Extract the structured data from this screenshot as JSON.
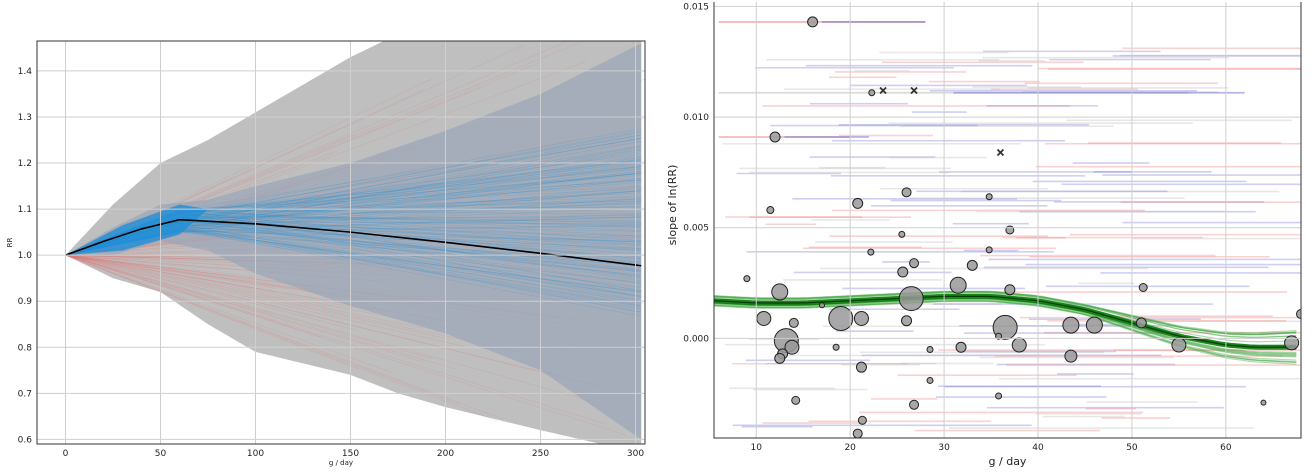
{
  "chart_data": [
    {
      "type": "line",
      "xlabel": "g / day",
      "ylabel": "RR",
      "xlim": [
        -15,
        305
      ],
      "ylim": [
        0.59,
        1.465
      ],
      "x_ticks": [
        0,
        50,
        100,
        150,
        200,
        250,
        300
      ],
      "y_ticks": [
        0.6,
        0.7,
        0.8,
        0.9,
        1.0,
        1.1,
        1.2,
        1.3,
        1.4
      ],
      "grid": true,
      "central_line": {
        "x": [
          0,
          20,
          40,
          60,
          100,
          150,
          200,
          250,
          303
        ],
        "y": [
          1.0,
          1.03,
          1.057,
          1.077,
          1.068,
          1.05,
          1.028,
          1.004,
          0.977
        ]
      },
      "band_outer": {
        "x": [
          0,
          25,
          50,
          75,
          100,
          150,
          175,
          200,
          250,
          303
        ],
        "upper": [
          1.0,
          1.11,
          1.2,
          1.25,
          1.31,
          1.43,
          1.48,
          1.5,
          1.5,
          1.5
        ],
        "lower": [
          1.0,
          0.95,
          0.92,
          0.85,
          0.79,
          0.74,
          0.7,
          0.67,
          0.62,
          0.57
        ]
      },
      "band_inner": {
        "x": [
          0,
          25,
          50,
          75,
          100,
          150,
          200,
          250,
          303
        ],
        "upper": [
          1.0,
          1.06,
          1.11,
          1.12,
          1.15,
          1.2,
          1.27,
          1.35,
          1.46
        ],
        "lower": [
          1.0,
          1.0,
          1.03,
          1.01,
          0.96,
          0.89,
          0.83,
          0.75,
          0.6
        ]
      },
      "colors": {
        "outer": "#b8b8b8",
        "inner": "#9aa5b8",
        "blue": "#1f8fd8",
        "red": "#e07070",
        "line": "#000000"
      }
    },
    {
      "type": "scatter",
      "xlabel": "g / day",
      "ylabel": "slope of ln(RR)",
      "xlim": [
        5.5,
        68
      ],
      "ylim": [
        -0.0045,
        0.0152
      ],
      "x_ticks": [
        10,
        20,
        30,
        40,
        50,
        60
      ],
      "y_ticks": [
        0.0,
        0.005,
        0.01,
        0.015
      ],
      "y_tick_labels": [
        "0.000",
        "0.005",
        "0.010",
        "0.015"
      ],
      "grid": true,
      "circles": [
        {
          "x": 16.0,
          "y": 0.0143,
          "s": 5
        },
        {
          "x": 12.0,
          "y": 0.0091,
          "s": 5
        },
        {
          "x": 22.3,
          "y": 0.0111,
          "s": 3
        },
        {
          "x": 20.8,
          "y": 0.0061,
          "s": 5
        },
        {
          "x": 11.5,
          "y": 0.0058,
          "s": 3.5
        },
        {
          "x": 26.0,
          "y": 0.0066,
          "s": 4.5
        },
        {
          "x": 34.8,
          "y": 0.0064,
          "s": 3
        },
        {
          "x": 25.5,
          "y": 0.0047,
          "s": 3
        },
        {
          "x": 37.0,
          "y": 0.0049,
          "s": 4
        },
        {
          "x": 22.2,
          "y": 0.0039,
          "s": 3
        },
        {
          "x": 34.8,
          "y": 0.004,
          "s": 3
        },
        {
          "x": 26.8,
          "y": 0.0034,
          "s": 4.5
        },
        {
          "x": 33.0,
          "y": 0.0033,
          "s": 5
        },
        {
          "x": 9.0,
          "y": 0.0027,
          "s": 3
        },
        {
          "x": 25.6,
          "y": 0.003,
          "s": 5
        },
        {
          "x": 12.5,
          "y": 0.0021,
          "s": 8
        },
        {
          "x": 31.5,
          "y": 0.0024,
          "s": 8
        },
        {
          "x": 37.0,
          "y": 0.0022,
          "s": 5
        },
        {
          "x": 26.5,
          "y": 0.0018,
          "s": 12
        },
        {
          "x": 51.2,
          "y": 0.0023,
          "s": 4
        },
        {
          "x": 17.0,
          "y": 0.0015,
          "s": 2.5
        },
        {
          "x": 19.0,
          "y": 0.0009,
          "s": 12
        },
        {
          "x": 10.8,
          "y": 0.0009,
          "s": 7
        },
        {
          "x": 21.2,
          "y": 0.0009,
          "s": 7
        },
        {
          "x": 14.0,
          "y": 0.0007,
          "s": 4.5
        },
        {
          "x": 26.0,
          "y": 0.0008,
          "s": 5
        },
        {
          "x": 36.5,
          "y": 0.0005,
          "s": 12
        },
        {
          "x": 43.5,
          "y": 0.0006,
          "s": 8
        },
        {
          "x": 46.0,
          "y": 0.0006,
          "s": 8
        },
        {
          "x": 13.2,
          "y": -0.0001,
          "s": 12
        },
        {
          "x": 13.8,
          "y": -0.0004,
          "s": 7
        },
        {
          "x": 12.8,
          "y": -0.0007,
          "s": 5
        },
        {
          "x": 12.5,
          "y": -0.0009,
          "s": 5
        },
        {
          "x": 18.5,
          "y": -0.0004,
          "s": 3
        },
        {
          "x": 28.5,
          "y": -0.0005,
          "s": 3
        },
        {
          "x": 38.0,
          "y": -0.0003,
          "s": 7
        },
        {
          "x": 31.8,
          "y": -0.0004,
          "s": 5
        },
        {
          "x": 35.8,
          "y": 0.0001,
          "s": 3
        },
        {
          "x": 51.0,
          "y": 0.0007,
          "s": 5
        },
        {
          "x": 55.0,
          "y": -0.0003,
          "s": 7
        },
        {
          "x": 67.0,
          "y": -0.0002,
          "s": 7
        },
        {
          "x": 68.0,
          "y": 0.0011,
          "s": 4.5
        },
        {
          "x": 43.5,
          "y": -0.0008,
          "s": 6
        },
        {
          "x": 21.2,
          "y": -0.0013,
          "s": 5
        },
        {
          "x": 28.5,
          "y": -0.0019,
          "s": 3
        },
        {
          "x": 35.8,
          "y": -0.0026,
          "s": 3
        },
        {
          "x": 14.2,
          "y": -0.0028,
          "s": 4
        },
        {
          "x": 26.8,
          "y": -0.003,
          "s": 4.5
        },
        {
          "x": 21.3,
          "y": -0.0037,
          "s": 4
        },
        {
          "x": 20.8,
          "y": -0.0043,
          "s": 4.5
        },
        {
          "x": 64.0,
          "y": -0.0029,
          "s": 2.5
        }
      ],
      "x_markers": [
        {
          "x": 23.5,
          "y": 0.0112
        },
        {
          "x": 26.8,
          "y": 0.0112
        },
        {
          "x": 36.0,
          "y": 0.0084
        }
      ],
      "trend_line": {
        "x": [
          5.5,
          10,
          15,
          20,
          25,
          30,
          35,
          40,
          45,
          50,
          55,
          60,
          63,
          68
        ],
        "y": [
          0.0017,
          0.0016,
          0.0016,
          0.0017,
          0.0018,
          0.0019,
          0.0019,
          0.0017,
          0.0013,
          0.0007,
          0.0001,
          -0.0003,
          -0.0004,
          -0.0004
        ]
      },
      "colors": {
        "trend": "#0a7a0a",
        "trend_light": "#4fae4f",
        "red": "#f08080",
        "blue": "#7878d8",
        "grey": "#bcbcbc",
        "point": "#999999"
      }
    }
  ]
}
